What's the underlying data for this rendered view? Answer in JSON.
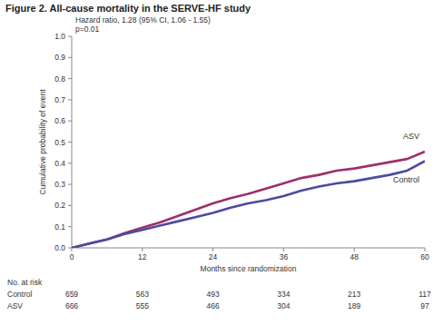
{
  "chart_data": {
    "type": "line",
    "title": "Figure 2. All-cause mortality in the SERVE-HF study",
    "annotations": [
      "Hazard ratio, 1.28 (95% CI, 1.06 - 1.55)",
      "p=0.01"
    ],
    "x_label": "Months since randomization",
    "y_label": "Cumulative probability of event",
    "x": [
      0,
      3,
      6,
      9,
      12,
      15,
      18,
      21,
      24,
      27,
      30,
      33,
      36,
      39,
      42,
      45,
      48,
      51,
      54,
      57,
      60
    ],
    "series": [
      {
        "name": "ASV",
        "color": "#9e2f6c",
        "line_style": "solid",
        "values": [
          0,
          0.02,
          0.04,
          0.07,
          0.095,
          0.12,
          0.15,
          0.18,
          0.21,
          0.235,
          0.255,
          0.28,
          0.305,
          0.33,
          0.345,
          0.365,
          0.375,
          0.39,
          0.405,
          0.42,
          0.455
        ]
      },
      {
        "name": "Control",
        "color": "#4b4ba2",
        "line_style": "solid",
        "values": [
          0,
          0.02,
          0.04,
          0.065,
          0.085,
          0.105,
          0.125,
          0.145,
          0.165,
          0.19,
          0.21,
          0.225,
          0.245,
          0.27,
          0.29,
          0.305,
          0.315,
          0.33,
          0.345,
          0.365,
          0.41
        ]
      }
    ],
    "xlim": [
      0,
      60
    ],
    "ylim": [
      0,
      1.0
    ],
    "xticks": [
      0,
      12,
      24,
      36,
      48,
      60
    ],
    "yticks": [
      {
        "value": 0,
        "label": "0.0"
      },
      {
        "value": 0.1,
        "label": "0.1"
      },
      {
        "value": 0.2,
        "label": "0.2"
      },
      {
        "value": 0.3,
        "label": "0.3"
      },
      {
        "value": 0.4,
        "label": "0.4"
      },
      {
        "value": 0.5,
        "label": "0.5"
      },
      {
        "value": 0.6,
        "label": "0.6"
      },
      {
        "value": 0.7,
        "label": "0.7"
      },
      {
        "value": 0.8,
        "label": "0.8"
      },
      {
        "value": 0.9,
        "label": "0.9"
      },
      {
        "value": 1.0,
        "label": "1.0"
      }
    ],
    "grid": false,
    "risk_table": {
      "title": "No. at risk",
      "times": [
        0,
        12,
        24,
        36,
        48,
        60
      ],
      "rows": [
        {
          "name": "Control",
          "values": [
            659,
            563,
            493,
            334,
            213,
            117
          ]
        },
        {
          "name": "ASV",
          "values": [
            666,
            555,
            466,
            304,
            189,
            97
          ]
        }
      ]
    }
  }
}
